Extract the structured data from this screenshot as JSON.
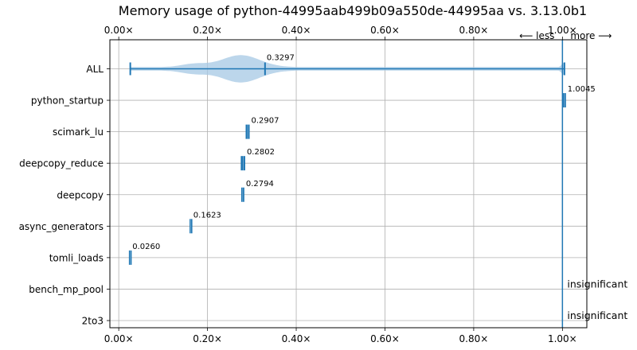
{
  "chart_data": {
    "type": "violin",
    "title": "Memory usage of python-44995aab499b09a550de-44995aa vs. 3.13.0b1",
    "xlabel": "",
    "ylabel": "",
    "xlim": [
      -0.02,
      1.055
    ],
    "x_ticks": [
      0.0,
      0.2,
      0.4,
      0.6,
      0.8,
      1.0
    ],
    "x_tick_labels": [
      "0.00×",
      "0.20×",
      "0.40×",
      "0.60×",
      "0.80×",
      "1.00×"
    ],
    "grid": true,
    "reference_line": 1.0,
    "direction_labels": {
      "less": "⟵ less",
      "more": "more ⟶"
    },
    "color": "#1f77b4",
    "violin_fill": "#a6c8e4",
    "categories": [
      "ALL",
      "python_startup",
      "scimark_lu",
      "deepcopy_reduce",
      "deepcopy",
      "async_generators",
      "tomli_loads",
      "bench_mp_pool",
      "2to3"
    ],
    "series": [
      {
        "label": "ALL",
        "min": 0.026,
        "max": 1.0045,
        "median": 0.3297,
        "value_label": "0.3297",
        "violin": true
      },
      {
        "label": "python_startup",
        "min": 1.001,
        "max": 1.008,
        "median": 1.0045,
        "value_label": "1.0045"
      },
      {
        "label": "scimark_lu",
        "min": 0.286,
        "max": 0.295,
        "median": 0.2907,
        "value_label": "0.2907"
      },
      {
        "label": "deepcopy_reduce",
        "min": 0.275,
        "max": 0.285,
        "median": 0.2802,
        "value_label": "0.2802"
      },
      {
        "label": "deepcopy",
        "min": 0.276,
        "max": 0.283,
        "median": 0.2794,
        "value_label": "0.2794"
      },
      {
        "label": "async_generators",
        "min": 0.161,
        "max": 0.1645,
        "median": 0.1623,
        "value_label": "0.1623"
      },
      {
        "label": "tomli_loads",
        "min": 0.025,
        "max": 0.027,
        "median": 0.026,
        "value_label": "0.0260"
      },
      {
        "label": "bench_mp_pool",
        "note": "insignificant"
      },
      {
        "label": "2to3",
        "note": "insignificant"
      }
    ]
  }
}
